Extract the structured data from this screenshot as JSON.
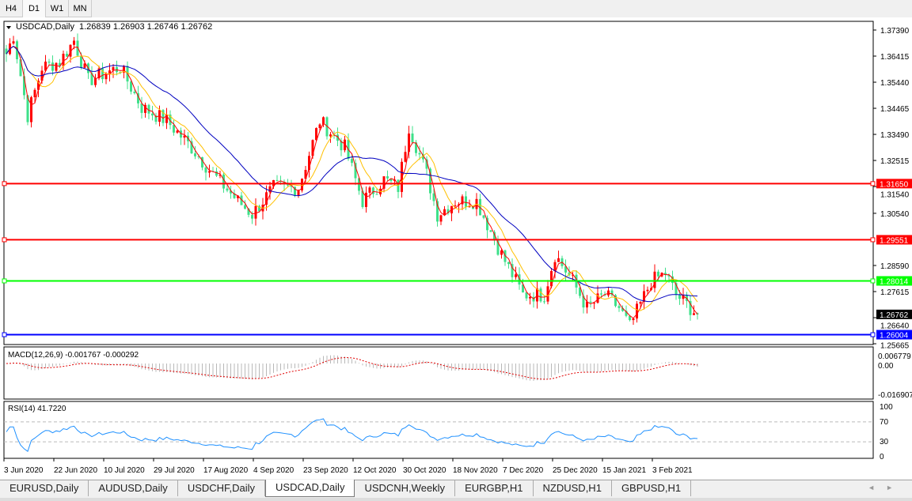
{
  "timeframes": [
    "H4",
    "D1",
    "W1",
    "MN"
  ],
  "active_timeframe": "D1",
  "chart": {
    "title": "USDCAD,Daily",
    "ohlc": "1.26839 1.26903 1.26746 1.26762",
    "price_ticks": [
      "1.37390",
      "1.36415",
      "1.35440",
      "1.34465",
      "1.33490",
      "1.32515",
      "1.31540",
      "1.30540",
      "1.28590",
      "1.27615",
      "1.26640",
      "1.25665"
    ],
    "price_range": [
      1.25665,
      1.3739
    ],
    "current_price": "1.26762",
    "hlines": [
      {
        "label": "1.31650",
        "value": 1.3165,
        "color": "#ff0000"
      },
      {
        "label": "1.29551",
        "value": 1.29551,
        "color": "#ff0000"
      },
      {
        "label": "1.28014",
        "value": 1.28014,
        "color": "#00ff00"
      },
      {
        "label": "1.26004",
        "value": 1.26004,
        "color": "#0000ff"
      }
    ],
    "bull_color": "#ff0000",
    "bear_color": "#3ee08a",
    "ma_colors": [
      "#ff0000",
      "#ffc000",
      "#0000c0"
    ],
    "date_labels": [
      "3 Jun 2020",
      "22 Jun 2020",
      "10 Jul 2020",
      "29 Jul 2020",
      "17 Aug 2020",
      "4 Sep 2020",
      "23 Sep 2020",
      "12 Oct 2020",
      "30 Oct 2020",
      "18 Nov 2020",
      "7 Dec 2020",
      "25 Dec 2020",
      "15 Jan 2021",
      "3 Feb 2021"
    ],
    "close_path": [
      [
        0,
        1.365
      ],
      [
        2,
        1.372
      ],
      [
        6,
        1.342
      ],
      [
        10,
        1.36
      ],
      [
        15,
        1.362
      ],
      [
        19,
        1.37
      ],
      [
        23,
        1.355
      ],
      [
        28,
        1.358
      ],
      [
        32,
        1.36
      ],
      [
        38,
        1.345
      ],
      [
        45,
        1.34
      ],
      [
        52,
        1.33
      ],
      [
        58,
        1.32
      ],
      [
        65,
        1.31
      ],
      [
        69,
        1.305
      ],
      [
        75,
        1.315
      ],
      [
        82,
        1.315
      ],
      [
        88,
        1.34
      ],
      [
        95,
        1.33
      ],
      [
        100,
        1.31
      ],
      [
        106,
        1.318
      ],
      [
        110,
        1.315
      ],
      [
        113,
        1.338
      ],
      [
        118,
        1.32
      ],
      [
        121,
        1.305
      ],
      [
        126,
        1.31
      ],
      [
        132,
        1.31
      ],
      [
        139,
        1.29
      ],
      [
        145,
        1.275
      ],
      [
        151,
        1.275
      ],
      [
        154,
        1.29
      ],
      [
        159,
        1.28
      ],
      [
        163,
        1.27
      ],
      [
        168,
        1.275
      ],
      [
        172,
        1.27
      ],
      [
        175,
        1.263
      ],
      [
        181,
        1.28
      ],
      [
        185,
        1.283
      ],
      [
        188,
        1.275
      ],
      [
        194,
        1.2676
      ]
    ]
  },
  "macd": {
    "label": "MACD(12,26,9) -0.001767 -0.000292",
    "ticks": [
      "0.006779",
      "0.00",
      "-0.016907"
    ],
    "range": [
      -0.016907,
      0.006779
    ]
  },
  "rsi": {
    "label": "RSI(14) 41.7220",
    "ticks": [
      "100",
      "70",
      "30",
      "0"
    ],
    "levels": [
      70,
      30
    ]
  },
  "tabs": [
    "EURUSD,Daily",
    "AUDUSD,Daily",
    "USDCHF,Daily",
    "USDCAD,Daily",
    "USDCNH,Weekly",
    "EURGBP,H1",
    "NZDUSD,H1",
    "GBPUSD,H1"
  ],
  "active_tab": "USDCAD,Daily"
}
